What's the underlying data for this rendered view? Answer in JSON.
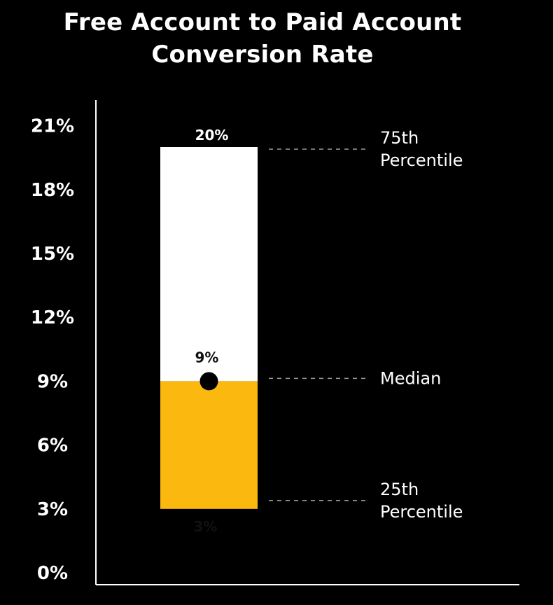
{
  "chart_data": {
    "type": "bar",
    "title_lines": [
      "Free Account to Paid Account",
      "Conversion Rate"
    ],
    "ylim": [
      0,
      21
    ],
    "y_ticks": [
      0,
      3,
      6,
      9,
      12,
      15,
      18,
      21
    ],
    "y_tick_labels": [
      "0%",
      "3%",
      "6%",
      "9%",
      "12%",
      "15%",
      "18%",
      "21%"
    ],
    "range": {
      "p25": 3,
      "median": 9,
      "p75": 20
    },
    "data_labels": {
      "p75": "20%",
      "median": "9%",
      "p25": "3%"
    },
    "annotations": {
      "p75": [
        "75th",
        "Percentile"
      ],
      "median": [
        "Median"
      ],
      "p25": [
        "25th",
        "Percentile"
      ]
    },
    "colors": {
      "background": "#000000",
      "upper_segment": "#ffffff",
      "lower_segment": "#fbb80e",
      "median_dot": "#000000",
      "text": "#ffffff",
      "axis": "#ffffff",
      "leader": "#9a9a9a"
    },
    "grid": false
  }
}
